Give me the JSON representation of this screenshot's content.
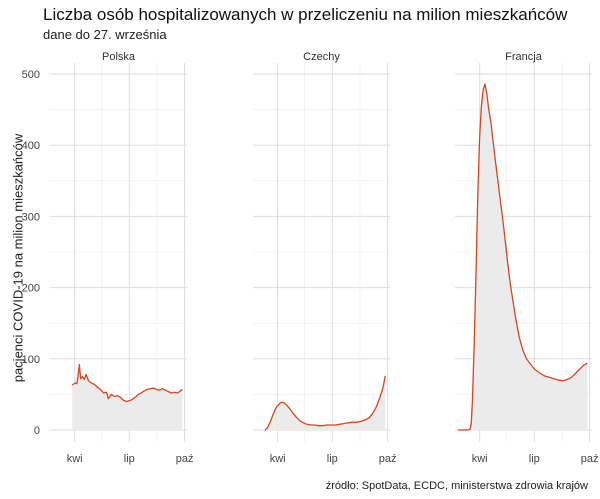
{
  "title": "Liczba osób hospitalizowanych w przeliczeniu na milion mieszkańców",
  "subtitle": "dane do 27. września",
  "caption": "źródło: SpotData, ECDC, ministerstwa zdrowia krajów",
  "colors": {
    "line": "#e0421a",
    "area": "#ebebeb",
    "grid": "#ebebeb",
    "grid_major": "#dedede"
  },
  "chart_data": {
    "type": "area",
    "ylabel": "pacjenci COVID-19 na milion mieszkańców",
    "ylim": [
      0,
      500
    ],
    "yticks": [
      0,
      100,
      200,
      300,
      400,
      500
    ],
    "xlim": [
      "2020-02-20",
      "2020-10-05"
    ],
    "xticks": [
      {
        "date": "2020-04-01",
        "label": "kwi"
      },
      {
        "date": "2020-07-01",
        "label": "lip"
      },
      {
        "date": "2020-10-01",
        "label": "paź"
      }
    ],
    "panels": [
      {
        "name": "Polska",
        "points": [
          [
            "2020-03-28",
            63
          ],
          [
            "2020-04-02",
            66
          ],
          [
            "2020-04-05",
            65
          ],
          [
            "2020-04-07",
            78
          ],
          [
            "2020-04-09",
            92
          ],
          [
            "2020-04-11",
            72
          ],
          [
            "2020-04-14",
            75
          ],
          [
            "2020-04-17",
            71
          ],
          [
            "2020-04-20",
            78
          ],
          [
            "2020-04-24",
            69
          ],
          [
            "2020-04-29",
            66
          ],
          [
            "2020-05-04",
            64
          ],
          [
            "2020-05-09",
            60
          ],
          [
            "2020-05-14",
            57
          ],
          [
            "2020-05-19",
            52
          ],
          [
            "2020-05-24",
            53
          ],
          [
            "2020-05-27",
            44
          ],
          [
            "2020-06-01",
            50
          ],
          [
            "2020-06-06",
            47
          ],
          [
            "2020-06-11",
            48
          ],
          [
            "2020-06-16",
            46
          ],
          [
            "2020-06-21",
            42
          ],
          [
            "2020-06-26",
            40
          ],
          [
            "2020-07-01",
            41
          ],
          [
            "2020-07-06",
            43
          ],
          [
            "2020-07-11",
            46
          ],
          [
            "2020-07-16",
            50
          ],
          [
            "2020-07-21",
            52
          ],
          [
            "2020-07-26",
            55
          ],
          [
            "2020-07-31",
            57
          ],
          [
            "2020-08-05",
            58
          ],
          [
            "2020-08-10",
            59
          ],
          [
            "2020-08-15",
            57
          ],
          [
            "2020-08-20",
            56
          ],
          [
            "2020-08-25",
            58
          ],
          [
            "2020-08-30",
            56
          ],
          [
            "2020-09-04",
            54
          ],
          [
            "2020-09-09",
            52
          ],
          [
            "2020-09-14",
            53
          ],
          [
            "2020-09-19",
            52
          ],
          [
            "2020-09-23",
            54
          ],
          [
            "2020-09-27",
            57
          ]
        ]
      },
      {
        "name": "Czechy",
        "points": [
          [
            "2020-03-11",
            0
          ],
          [
            "2020-03-15",
            3
          ],
          [
            "2020-03-20",
            12
          ],
          [
            "2020-03-25",
            23
          ],
          [
            "2020-03-30",
            32
          ],
          [
            "2020-04-04",
            37
          ],
          [
            "2020-04-08",
            39
          ],
          [
            "2020-04-12",
            38
          ],
          [
            "2020-04-17",
            34
          ],
          [
            "2020-04-22",
            29
          ],
          [
            "2020-04-27",
            23
          ],
          [
            "2020-05-02",
            18
          ],
          [
            "2020-05-08",
            13
          ],
          [
            "2020-05-14",
            10
          ],
          [
            "2020-05-20",
            8
          ],
          [
            "2020-05-26",
            7
          ],
          [
            "2020-06-01",
            7
          ],
          [
            "2020-06-08",
            6
          ],
          [
            "2020-06-15",
            6
          ],
          [
            "2020-06-22",
            7
          ],
          [
            "2020-06-29",
            7
          ],
          [
            "2020-07-06",
            7
          ],
          [
            "2020-07-13",
            8
          ],
          [
            "2020-07-20",
            9
          ],
          [
            "2020-07-27",
            10
          ],
          [
            "2020-08-03",
            11
          ],
          [
            "2020-08-10",
            11
          ],
          [
            "2020-08-17",
            12
          ],
          [
            "2020-08-24",
            14
          ],
          [
            "2020-08-31",
            17
          ],
          [
            "2020-09-06",
            23
          ],
          [
            "2020-09-12",
            32
          ],
          [
            "2020-09-17",
            43
          ],
          [
            "2020-09-21",
            53
          ],
          [
            "2020-09-24",
            62
          ],
          [
            "2020-09-27",
            76
          ]
        ]
      },
      {
        "name": "Francja",
        "points": [
          [
            "2020-02-25",
            0
          ],
          [
            "2020-03-05",
            0
          ],
          [
            "2020-03-12",
            0
          ],
          [
            "2020-03-16",
            1
          ],
          [
            "2020-03-18",
            8
          ],
          [
            "2020-03-20",
            40
          ],
          [
            "2020-03-23",
            120
          ],
          [
            "2020-03-26",
            220
          ],
          [
            "2020-03-29",
            330
          ],
          [
            "2020-04-01",
            410
          ],
          [
            "2020-04-04",
            455
          ],
          [
            "2020-04-07",
            478
          ],
          [
            "2020-04-10",
            486
          ],
          [
            "2020-04-13",
            472
          ],
          [
            "2020-04-16",
            452
          ],
          [
            "2020-04-20",
            430
          ],
          [
            "2020-04-24",
            400
          ],
          [
            "2020-04-28",
            372
          ],
          [
            "2020-05-02",
            345
          ],
          [
            "2020-05-06",
            318
          ],
          [
            "2020-05-10",
            292
          ],
          [
            "2020-05-14",
            262
          ],
          [
            "2020-05-18",
            232
          ],
          [
            "2020-05-22",
            205
          ],
          [
            "2020-05-27",
            178
          ],
          [
            "2020-06-01",
            152
          ],
          [
            "2020-06-06",
            130
          ],
          [
            "2020-06-12",
            112
          ],
          [
            "2020-06-18",
            100
          ],
          [
            "2020-06-25",
            92
          ],
          [
            "2020-07-02",
            85
          ],
          [
            "2020-07-10",
            80
          ],
          [
            "2020-07-18",
            76
          ],
          [
            "2020-07-26",
            74
          ],
          [
            "2020-08-03",
            72
          ],
          [
            "2020-08-11",
            70
          ],
          [
            "2020-08-18",
            69
          ],
          [
            "2020-08-25",
            71
          ],
          [
            "2020-09-01",
            74
          ],
          [
            "2020-09-08",
            80
          ],
          [
            "2020-09-15",
            86
          ],
          [
            "2020-09-21",
            91
          ],
          [
            "2020-09-27",
            94
          ]
        ]
      }
    ]
  }
}
